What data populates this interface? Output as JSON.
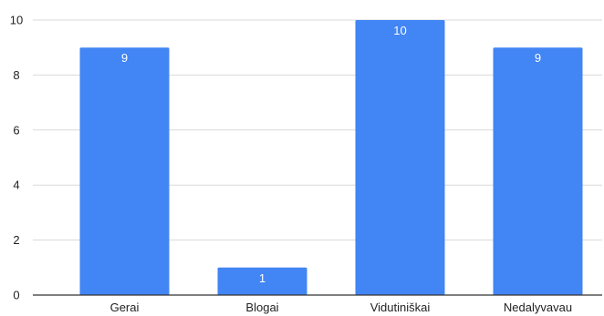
{
  "chart_data": {
    "type": "bar",
    "categories": [
      "Gerai",
      "Blogai",
      "Vidutiniškai",
      "Nedalyvavau"
    ],
    "values": [
      9,
      1,
      10,
      9
    ],
    "data_labels": [
      "9",
      "1",
      "10",
      "9"
    ],
    "ylim": [
      0,
      10
    ],
    "yticks": [
      0,
      2,
      4,
      6,
      8,
      10
    ],
    "ytick_labels": [
      "0",
      "2",
      "4",
      "6",
      "8",
      "10"
    ],
    "grid": true,
    "legend": "none",
    "colors": {
      "bar": "#4285f4",
      "grid": "#d9d9d9",
      "axis": "#333333",
      "text": "#222222",
      "data_label": "#ffffff"
    }
  }
}
